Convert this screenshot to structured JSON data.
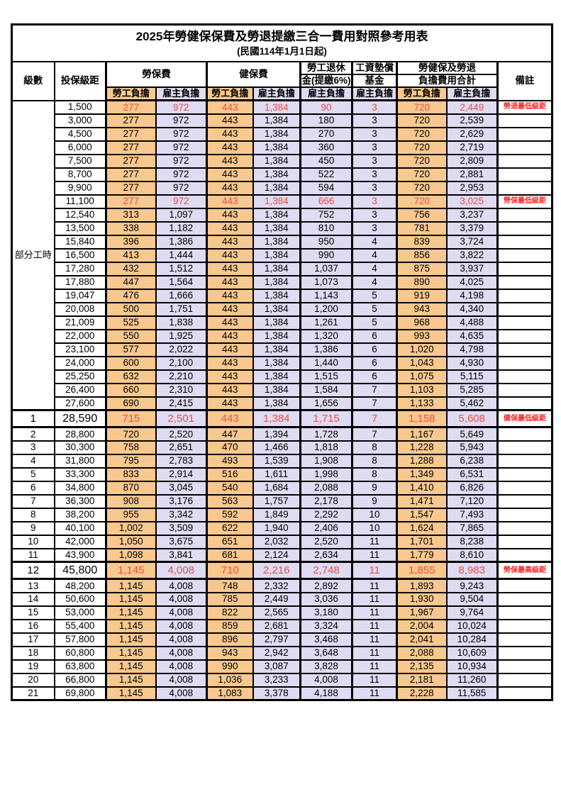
{
  "page": {
    "title": "2025年勞健保保費及勞退提繳三合一費用對照參考用表",
    "subtitle": "(民國114年1月1日起)"
  },
  "colors": {
    "employee_bg": "#F9C88F",
    "employer_bg": "#DEDBF2",
    "highlight_value_red": "#E8504A",
    "note_red": "#FF2020"
  },
  "table": {
    "headers": {
      "level": "級數",
      "salary": "投保級距",
      "labor": "勞保費",
      "health": "健保費",
      "pension_line1": "勞工退休",
      "pension_line2": "金(提繳6%)",
      "wage_fund_line1": "工資墊償",
      "wage_fund_line2": "基金",
      "total_line1": "勞健保及勞退",
      "total_line2": "負擔費用合計",
      "note": "備註",
      "employee": "勞工負擔",
      "employer": "雇主負擔"
    },
    "part_time_label": "部分工時",
    "part_time_rowspan": 23,
    "rows": [
      {
        "level": "",
        "salary": "1,500",
        "values": [
          "277",
          "972",
          "443",
          "1,384",
          "90",
          "3",
          "720",
          "2,449"
        ],
        "note": "勞退最低級距",
        "red": true,
        "big": false
      },
      {
        "level": "",
        "salary": "3,000",
        "values": [
          "277",
          "972",
          "443",
          "1,384",
          "180",
          "3",
          "720",
          "2,539"
        ],
        "note": "",
        "red": false,
        "big": false
      },
      {
        "level": "",
        "salary": "4,500",
        "values": [
          "277",
          "972",
          "443",
          "1,384",
          "270",
          "3",
          "720",
          "2,629"
        ],
        "note": "",
        "red": false,
        "big": false
      },
      {
        "level": "",
        "salary": "6,000",
        "values": [
          "277",
          "972",
          "443",
          "1,384",
          "360",
          "3",
          "720",
          "2,719"
        ],
        "note": "",
        "red": false,
        "big": false
      },
      {
        "level": "",
        "salary": "7,500",
        "values": [
          "277",
          "972",
          "443",
          "1,384",
          "450",
          "3",
          "720",
          "2,809"
        ],
        "note": "",
        "red": false,
        "big": false
      },
      {
        "level": "",
        "salary": "8,700",
        "values": [
          "277",
          "972",
          "443",
          "1,384",
          "522",
          "3",
          "720",
          "2,881"
        ],
        "note": "",
        "red": false,
        "big": false
      },
      {
        "level": "",
        "salary": "9,900",
        "values": [
          "277",
          "972",
          "443",
          "1,384",
          "594",
          "3",
          "720",
          "2,953"
        ],
        "note": "",
        "red": false,
        "big": false
      },
      {
        "level": "",
        "salary": "11,100",
        "values": [
          "277",
          "972",
          "443",
          "1,384",
          "666",
          "3",
          "720",
          "3,025"
        ],
        "note": "勞保最低級距",
        "red": true,
        "big": false
      },
      {
        "level": "",
        "salary": "12,540",
        "values": [
          "313",
          "1,097",
          "443",
          "1,384",
          "752",
          "3",
          "756",
          "3,237"
        ],
        "note": "",
        "red": false,
        "big": false
      },
      {
        "level": "",
        "salary": "13,500",
        "values": [
          "338",
          "1,182",
          "443",
          "1,384",
          "810",
          "3",
          "781",
          "3,379"
        ],
        "note": "",
        "red": false,
        "big": false
      },
      {
        "level": "",
        "salary": "15,840",
        "values": [
          "396",
          "1,386",
          "443",
          "1,384",
          "950",
          "4",
          "839",
          "3,724"
        ],
        "note": "",
        "red": false,
        "big": false
      },
      {
        "level": "",
        "salary": "16,500",
        "values": [
          "413",
          "1,444",
          "443",
          "1,384",
          "990",
          "4",
          "856",
          "3,822"
        ],
        "note": "",
        "red": false,
        "big": false
      },
      {
        "level": "",
        "salary": "17,280",
        "values": [
          "432",
          "1,512",
          "443",
          "1,384",
          "1,037",
          "4",
          "875",
          "3,937"
        ],
        "note": "",
        "red": false,
        "big": false
      },
      {
        "level": "",
        "salary": "17,880",
        "values": [
          "447",
          "1,564",
          "443",
          "1,384",
          "1,073",
          "4",
          "890",
          "4,025"
        ],
        "note": "",
        "red": false,
        "big": false
      },
      {
        "level": "",
        "salary": "19,047",
        "values": [
          "476",
          "1,666",
          "443",
          "1,384",
          "1,143",
          "5",
          "919",
          "4,198"
        ],
        "note": "",
        "red": false,
        "big": false
      },
      {
        "level": "",
        "salary": "20,008",
        "values": [
          "500",
          "1,751",
          "443",
          "1,384",
          "1,200",
          "5",
          "943",
          "4,340"
        ],
        "note": "",
        "red": false,
        "big": false
      },
      {
        "level": "",
        "salary": "21,009",
        "values": [
          "525",
          "1,838",
          "443",
          "1,384",
          "1,261",
          "5",
          "968",
          "4,488"
        ],
        "note": "",
        "red": false,
        "big": false
      },
      {
        "level": "",
        "salary": "22,000",
        "values": [
          "550",
          "1,925",
          "443",
          "1,384",
          "1,320",
          "6",
          "993",
          "4,635"
        ],
        "note": "",
        "red": false,
        "big": false
      },
      {
        "level": "",
        "salary": "23,100",
        "values": [
          "577",
          "2,022",
          "443",
          "1,384",
          "1,386",
          "6",
          "1,020",
          "4,798"
        ],
        "note": "",
        "red": false,
        "big": false
      },
      {
        "level": "",
        "salary": "24,000",
        "values": [
          "600",
          "2,100",
          "443",
          "1,384",
          "1,440",
          "6",
          "1,043",
          "4,930"
        ],
        "note": "",
        "red": false,
        "big": false
      },
      {
        "level": "",
        "salary": "25,250",
        "values": [
          "632",
          "2,210",
          "443",
          "1,384",
          "1,515",
          "6",
          "1,075",
          "5,115"
        ],
        "note": "",
        "red": false,
        "big": false
      },
      {
        "level": "",
        "salary": "26,400",
        "values": [
          "660",
          "2,310",
          "443",
          "1,384",
          "1,584",
          "7",
          "1,103",
          "5,285"
        ],
        "note": "",
        "red": false,
        "big": false
      },
      {
        "level": "",
        "salary": "27,600",
        "values": [
          "690",
          "2,415",
          "443",
          "1,384",
          "1,656",
          "7",
          "1,133",
          "5,462"
        ],
        "note": "",
        "red": false,
        "big": false
      },
      {
        "level": "1",
        "salary": "28,590",
        "values": [
          "715",
          "2,501",
          "443",
          "1,384",
          "1,715",
          "7",
          "1,158",
          "5,608"
        ],
        "note": "健保最低級距",
        "red": true,
        "big": true
      },
      {
        "level": "2",
        "salary": "28,800",
        "values": [
          "720",
          "2,520",
          "447",
          "1,394",
          "1,728",
          "7",
          "1,167",
          "5,649"
        ],
        "note": "",
        "red": false,
        "big": false
      },
      {
        "level": "3",
        "salary": "30,300",
        "values": [
          "758",
          "2,651",
          "470",
          "1,466",
          "1,818",
          "8",
          "1,228",
          "5,943"
        ],
        "note": "",
        "red": false,
        "big": false
      },
      {
        "level": "4",
        "salary": "31,800",
        "values": [
          "795",
          "2,783",
          "493",
          "1,539",
          "1,908",
          "8",
          "1,288",
          "6,238"
        ],
        "note": "",
        "red": false,
        "big": false
      },
      {
        "level": "5",
        "salary": "33,300",
        "values": [
          "833",
          "2,914",
          "516",
          "1,611",
          "1,998",
          "8",
          "1,349",
          "6,531"
        ],
        "note": "",
        "red": false,
        "big": false
      },
      {
        "level": "6",
        "salary": "34,800",
        "values": [
          "870",
          "3,045",
          "540",
          "1,684",
          "2,088",
          "9",
          "1,410",
          "6,826"
        ],
        "note": "",
        "red": false,
        "big": false
      },
      {
        "level": "7",
        "salary": "36,300",
        "values": [
          "908",
          "3,176",
          "563",
          "1,757",
          "2,178",
          "9",
          "1,471",
          "7,120"
        ],
        "note": "",
        "red": false,
        "big": false
      },
      {
        "level": "8",
        "salary": "38,200",
        "values": [
          "955",
          "3,342",
          "592",
          "1,849",
          "2,292",
          "10",
          "1,547",
          "7,493"
        ],
        "note": "",
        "red": false,
        "big": false
      },
      {
        "level": "9",
        "salary": "40,100",
        "values": [
          "1,002",
          "3,509",
          "622",
          "1,940",
          "2,406",
          "10",
          "1,624",
          "7,865"
        ],
        "note": "",
        "red": false,
        "big": false
      },
      {
        "level": "10",
        "salary": "42,000",
        "values": [
          "1,050",
          "3,675",
          "651",
          "2,032",
          "2,520",
          "11",
          "1,701",
          "8,238"
        ],
        "note": "",
        "red": false,
        "big": false
      },
      {
        "level": "11",
        "salary": "43,900",
        "values": [
          "1,098",
          "3,841",
          "681",
          "2,124",
          "2,634",
          "11",
          "1,779",
          "8,610"
        ],
        "note": "",
        "red": false,
        "big": false
      },
      {
        "level": "12",
        "salary": "45,800",
        "values": [
          "1,145",
          "4,008",
          "710",
          "2,216",
          "2,748",
          "11",
          "1,855",
          "8,983"
        ],
        "note": "勞保最高級距",
        "red": true,
        "big": true
      },
      {
        "level": "13",
        "salary": "48,200",
        "values": [
          "1,145",
          "4,008",
          "748",
          "2,332",
          "2,892",
          "11",
          "1,893",
          "9,243"
        ],
        "note": "",
        "red": false,
        "big": false
      },
      {
        "level": "14",
        "salary": "50,600",
        "values": [
          "1,145",
          "4,008",
          "785",
          "2,449",
          "3,036",
          "11",
          "1,930",
          "9,504"
        ],
        "note": "",
        "red": false,
        "big": false
      },
      {
        "level": "15",
        "salary": "53,000",
        "values": [
          "1,145",
          "4,008",
          "822",
          "2,565",
          "3,180",
          "11",
          "1,967",
          "9,764"
        ],
        "note": "",
        "red": false,
        "big": false
      },
      {
        "level": "16",
        "salary": "55,400",
        "values": [
          "1,145",
          "4,008",
          "859",
          "2,681",
          "3,324",
          "11",
          "2,004",
          "10,024"
        ],
        "note": "",
        "red": false,
        "big": false
      },
      {
        "level": "17",
        "salary": "57,800",
        "values": [
          "1,145",
          "4,008",
          "896",
          "2,797",
          "3,468",
          "11",
          "2,041",
          "10,284"
        ],
        "note": "",
        "red": false,
        "big": false
      },
      {
        "level": "18",
        "salary": "60,800",
        "values": [
          "1,145",
          "4,008",
          "943",
          "2,942",
          "3,648",
          "11",
          "2,088",
          "10,609"
        ],
        "note": "",
        "red": false,
        "big": false
      },
      {
        "level": "19",
        "salary": "63,800",
        "values": [
          "1,145",
          "4,008",
          "990",
          "3,087",
          "3,828",
          "11",
          "2,135",
          "10,934"
        ],
        "note": "",
        "red": false,
        "big": false
      },
      {
        "level": "20",
        "salary": "66,800",
        "values": [
          "1,145",
          "4,008",
          "1,036",
          "3,233",
          "4,008",
          "11",
          "2,181",
          "11,260"
        ],
        "note": "",
        "red": false,
        "big": false
      },
      {
        "level": "21",
        "salary": "69,800",
        "values": [
          "1,145",
          "4,008",
          "1,083",
          "3,378",
          "4,188",
          "11",
          "2,228",
          "11,585"
        ],
        "note": "",
        "red": false,
        "big": false
      }
    ]
  }
}
